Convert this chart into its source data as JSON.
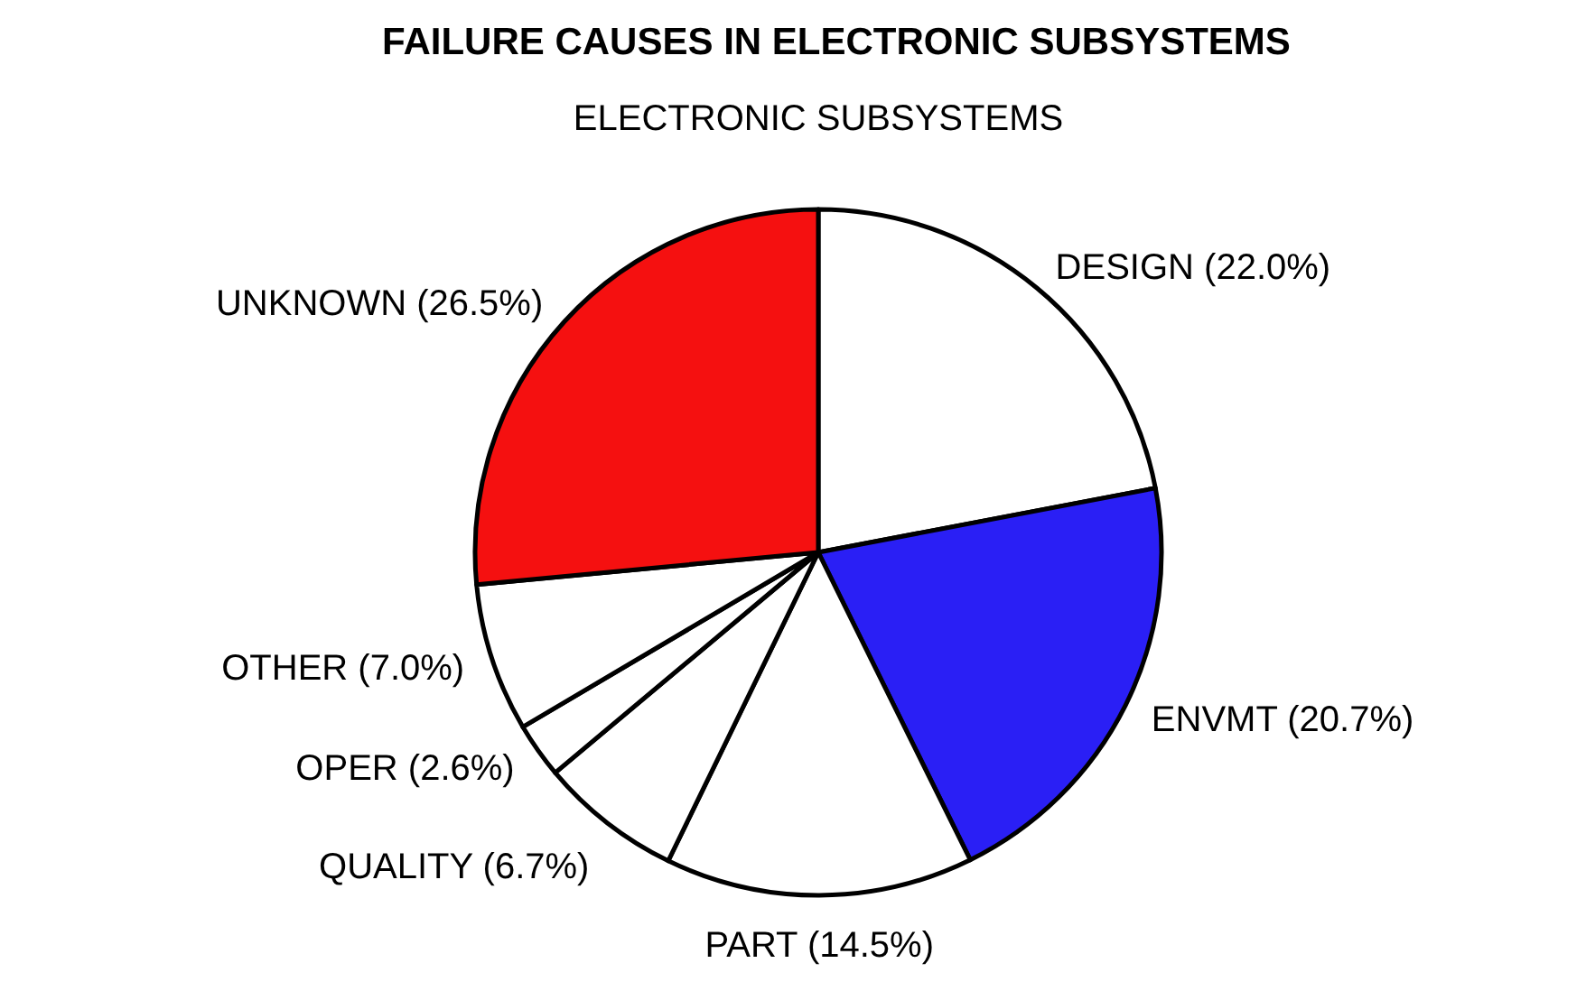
{
  "chart_data": {
    "type": "pie",
    "title": "FAILURE CAUSES IN ELECTRONIC SUBSYSTEMS",
    "subtitle": "ELECTRONIC SUBSYSTEMS",
    "categories": [
      "DESIGN",
      "ENVMT",
      "PART",
      "QUALITY",
      "OPER",
      "OTHER",
      "UNKNOWN"
    ],
    "values": [
      22.0,
      20.7,
      14.5,
      6.7,
      2.6,
      7.0,
      26.5
    ],
    "value_labels": [
      "(22.0%)",
      "(20.7%)",
      "(14.5%)",
      "(6.7%)",
      "(2.6%)",
      "(7.0%)",
      "(26.5%)"
    ],
    "colors": [
      "#ffffff",
      "#2a1ff5",
      "#ffffff",
      "#ffffff",
      "#ffffff",
      "#ffffff",
      "#f51010"
    ]
  }
}
